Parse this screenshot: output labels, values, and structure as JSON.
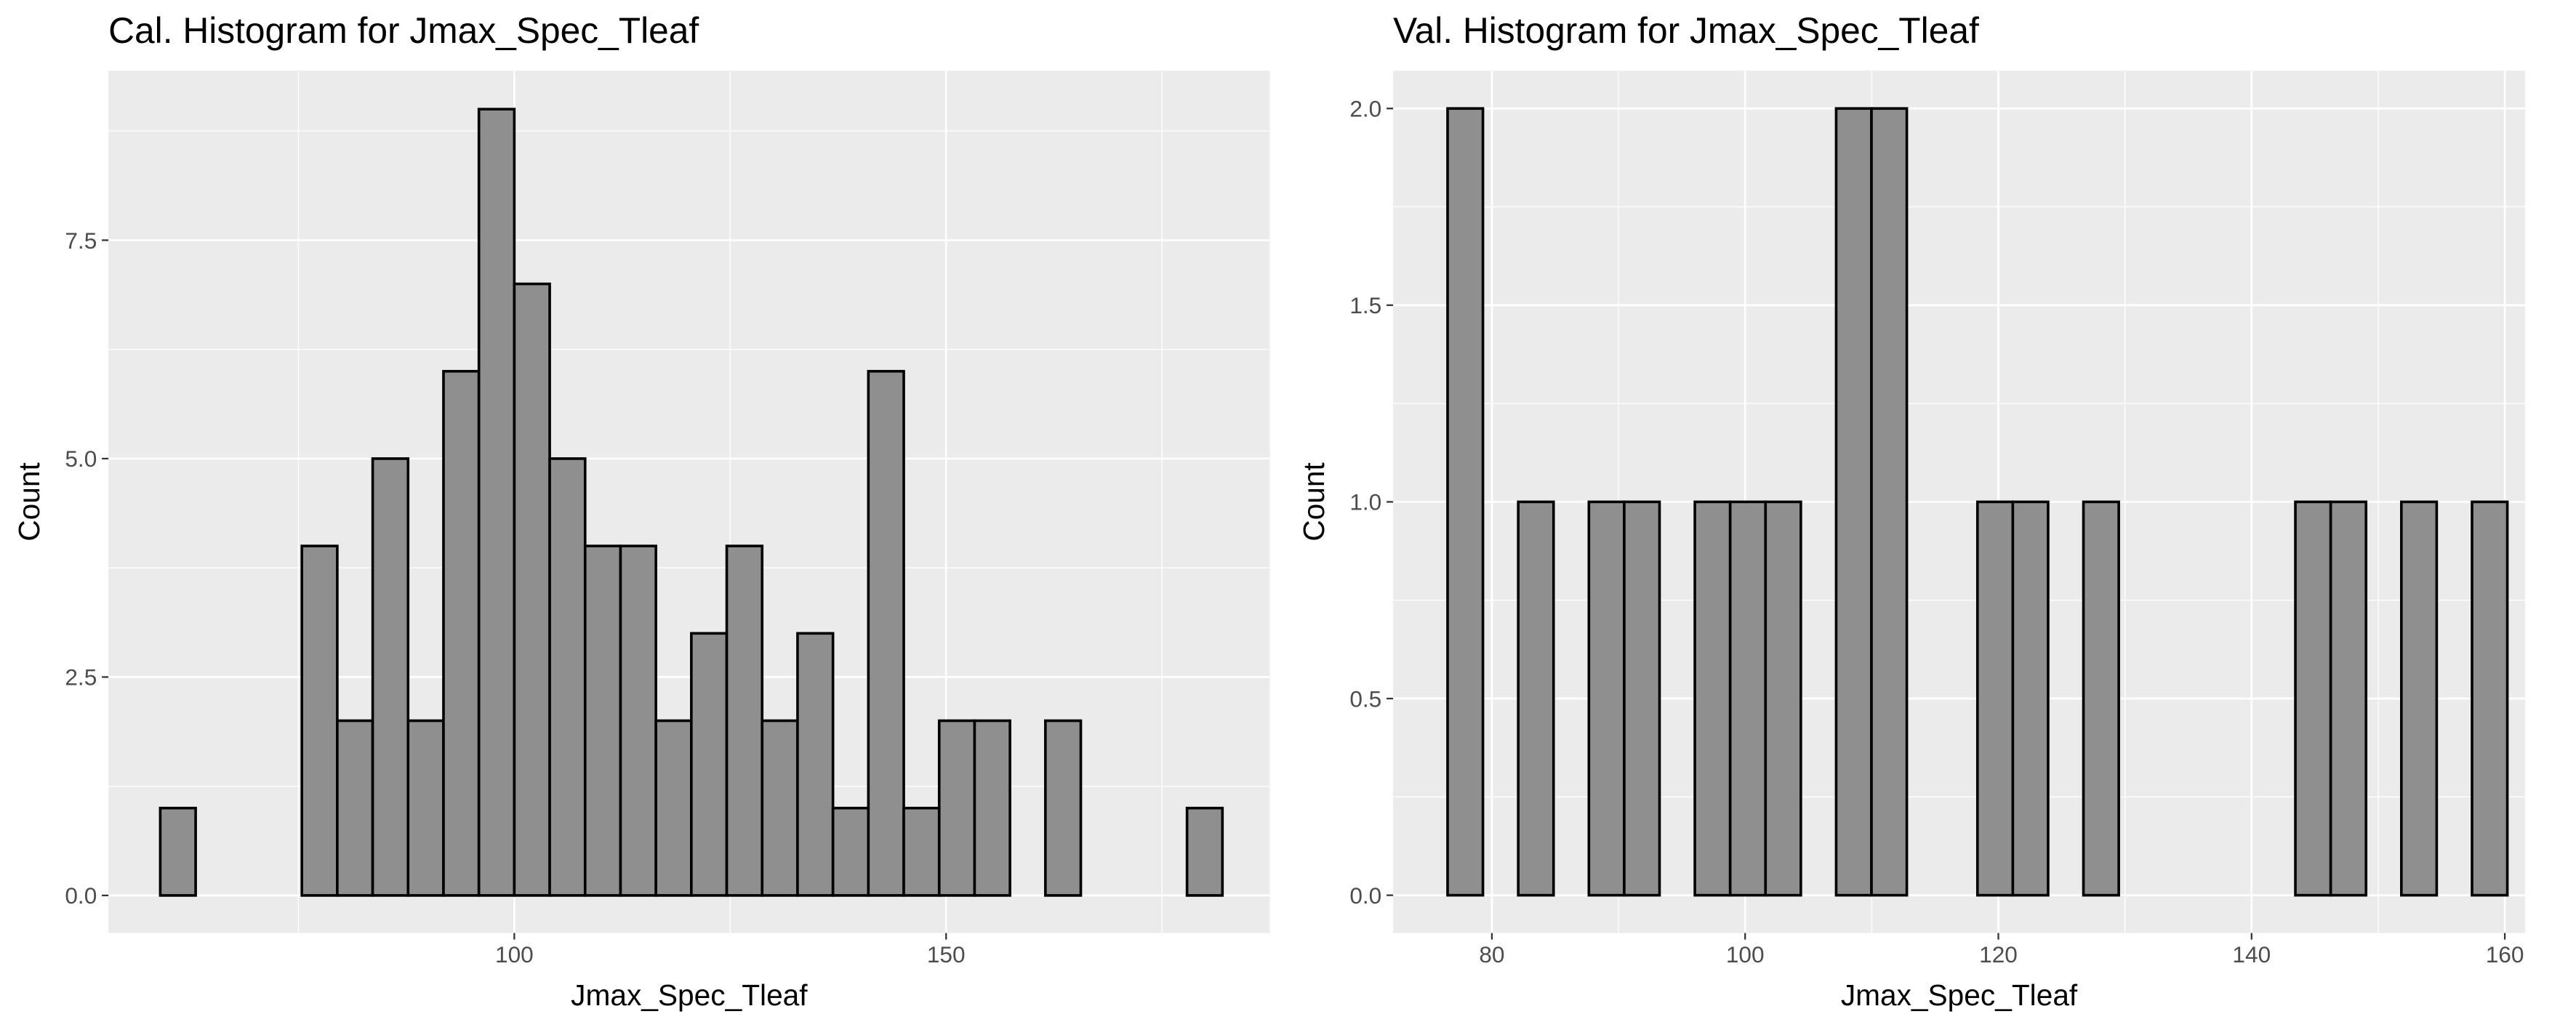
{
  "chart_data": [
    {
      "type": "histogram",
      "title": "Cal. Histogram for Jmax_Spec_Tleaf",
      "x_label": "Jmax_Spec_Tleaf",
      "y_label": "Count",
      "bins": [
        59.0,
        63.1,
        67.2,
        71.3,
        75.4,
        79.5,
        83.6,
        87.7,
        91.8,
        95.9,
        100.0,
        104.1,
        108.2,
        112.3,
        116.4,
        120.5,
        124.6,
        128.7,
        132.8,
        136.9,
        141.0,
        145.1,
        149.2,
        153.3,
        157.4,
        161.5,
        165.6,
        169.7,
        173.8,
        177.9,
        182.0
      ],
      "values": [
        1,
        0,
        0,
        0,
        4,
        2,
        5,
        2,
        6,
        9,
        7,
        5,
        4,
        4,
        2,
        3,
        4,
        2,
        3,
        1,
        6,
        1,
        2,
        2,
        0,
        2,
        0,
        0,
        0,
        1
      ],
      "color": "#8f8f8f",
      "edge_color": "#000000",
      "xlim": [
        53.0,
        187.5
      ],
      "xticks": [
        100,
        150
      ],
      "xminorticks": [
        75,
        125,
        175
      ],
      "ylim": [
        -0.43,
        9.44
      ],
      "yticks": [
        {
          "value": 0,
          "label": "0.0"
        },
        {
          "value": 2.5,
          "label": "2.5"
        },
        {
          "value": 5,
          "label": "5.0"
        },
        {
          "value": 7.5,
          "label": "7.5"
        }
      ],
      "yminorticks": [
        1.25,
        3.75,
        6.25,
        8.75
      ],
      "grid": true
    },
    {
      "type": "histogram",
      "title": "Val. Histogram for Jmax_Spec_Tleaf",
      "x_label": "Jmax_Spec_Tleaf",
      "y_label": "Count",
      "bins": [
        76.5,
        79.29,
        82.08,
        84.87,
        87.66,
        90.45,
        93.24,
        96.03,
        98.82,
        101.61,
        104.4,
        107.19,
        109.98,
        112.77,
        115.56,
        118.35,
        121.14,
        123.93,
        126.72,
        129.51,
        132.3,
        135.09,
        137.88,
        140.67,
        143.46,
        146.25,
        149.04,
        151.83,
        154.62,
        157.41,
        160.2
      ],
      "values": [
        2,
        0,
        1,
        0,
        1,
        1,
        0,
        1,
        1,
        1,
        0,
        2,
        2,
        0,
        0,
        1,
        1,
        0,
        1,
        0,
        0,
        0,
        0,
        0,
        1,
        1,
        0,
        1,
        0,
        1
      ],
      "color": "#8f8f8f",
      "edge_color": "#000000",
      "xlim": [
        72.2,
        161.6
      ],
      "xticks": [
        80,
        100,
        120,
        140,
        160
      ],
      "xminorticks": [
        90,
        110,
        130,
        150
      ],
      "ylim": [
        -0.096,
        2.096
      ],
      "yticks": [
        {
          "value": 0,
          "label": "0.0"
        },
        {
          "value": 0.5,
          "label": "0.5"
        },
        {
          "value": 1,
          "label": "1.0"
        },
        {
          "value": 1.5,
          "label": "1.5"
        },
        {
          "value": 2,
          "label": "2.0"
        }
      ],
      "yminorticks": [
        0.25,
        0.75,
        1.25,
        1.75
      ],
      "grid": true
    }
  ]
}
